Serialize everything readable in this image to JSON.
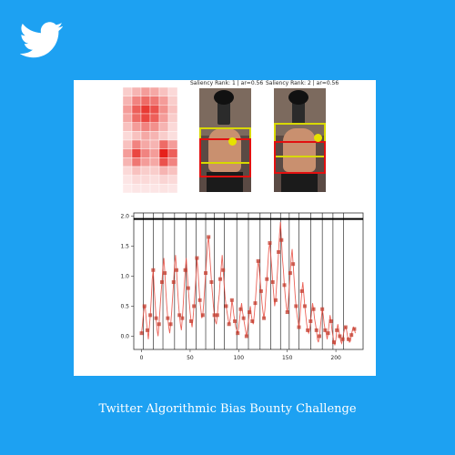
{
  "brand": {
    "icon": "twitter-bird-icon",
    "color": "#ffffff",
    "background": "#1da1f2"
  },
  "panels": [
    {
      "title": "Saliency Rank: 1 | ar=0.56"
    },
    {
      "title": "Saliency Rank: 2 | ar=0.56"
    }
  ],
  "chart_data": {
    "type": "line",
    "title": "",
    "xlabel": "",
    "ylabel": "",
    "x_ticks": [
      0,
      50,
      100,
      150,
      200
    ],
    "y_ticks": [
      "0.0",
      "0.5",
      "1.0",
      "1.5",
      "2.0"
    ],
    "xlim": [
      -8,
      228
    ],
    "ylim": [
      -0.22,
      2.05
    ],
    "threshold": 1.95,
    "vlines": [
      2,
      12,
      22,
      34,
      46,
      56,
      66,
      75,
      85,
      98,
      110,
      122,
      133,
      143,
      152,
      162,
      174,
      186,
      197,
      208
    ],
    "series": [
      {
        "values": [
          0.05,
          0.2,
          0.38,
          0.5,
          0.45,
          0.25,
          0.1,
          -0.05,
          0.15,
          0.35,
          0.62,
          0.95,
          1.1,
          0.8,
          0.55,
          0.3,
          0.1,
          0.0,
          0.2,
          0.45,
          0.7,
          0.9,
          1.15,
          1.3,
          1.05,
          0.75,
          0.5,
          0.3,
          0.15,
          0.05,
          0.2,
          0.4,
          0.65,
          0.9,
          1.2,
          1.35,
          1.1,
          0.8,
          0.55,
          0.35,
          0.2,
          0.1,
          0.3,
          0.55,
          0.85,
          1.1,
          1.3,
          1.05,
          0.8,
          0.6,
          0.4,
          0.25,
          0.15,
          0.3,
          0.5,
          0.75,
          1.0,
          1.3,
          1.1,
          0.85,
          0.6,
          0.45,
          0.3,
          0.35,
          0.55,
          0.8,
          1.05,
          1.3,
          1.55,
          1.65,
          1.4,
          1.15,
          0.9,
          0.7,
          0.5,
          0.35,
          0.25,
          0.2,
          0.35,
          0.55,
          0.7,
          0.95,
          1.15,
          1.35,
          1.1,
          0.85,
          0.65,
          0.5,
          0.4,
          0.3,
          0.2,
          0.25,
          0.4,
          0.6,
          0.5,
          0.35,
          0.25,
          0.15,
          0.1,
          0.05,
          0.15,
          0.3,
          0.45,
          0.55,
          0.4,
          0.3,
          0.2,
          0.1,
          0.0,
          0.1,
          0.25,
          0.4,
          0.5,
          0.35,
          0.25,
          0.2,
          0.35,
          0.55,
          0.8,
          1.05,
          1.25,
          1.15,
          0.95,
          0.75,
          0.55,
          0.4,
          0.3,
          0.45,
          0.7,
          0.95,
          1.2,
          1.45,
          1.55,
          1.35,
          1.15,
          0.9,
          0.7,
          0.5,
          0.6,
          0.85,
          1.1,
          1.4,
          1.7,
          1.9,
          1.6,
          1.3,
          1.1,
          0.85,
          0.65,
          0.5,
          0.4,
          0.55,
          0.8,
          1.05,
          1.3,
          1.45,
          1.2,
          0.95,
          0.7,
          0.5,
          0.35,
          0.25,
          0.15,
          0.3,
          0.55,
          0.75,
          0.9,
          0.7,
          0.5,
          0.35,
          0.2,
          0.1,
          0.05,
          0.1,
          0.25,
          0.4,
          0.55,
          0.45,
          0.3,
          0.2,
          0.1,
          -0.05,
          -0.1,
          0.0,
          0.15,
          0.3,
          0.45,
          0.35,
          0.2,
          0.1,
          0.05,
          -0.05,
          0.05,
          0.2,
          0.35,
          0.25,
          0.1,
          0.0,
          -0.1,
          -0.15,
          -0.05,
          0.1,
          0.2,
          0.1,
          0.0,
          -0.08,
          -0.12,
          -0.05,
          0.05,
          0.12,
          0.15,
          0.1,
          0.0,
          -0.05,
          -0.1,
          -0.08,
          0.02,
          0.1,
          0.15,
          0.12,
          0.05
        ]
      }
    ],
    "line_color": "#e8483c",
    "marker_color": "#c0392b",
    "threshold_color": "#000000"
  },
  "caption": "Twitter Algorithmic Bias Bounty Challenge"
}
